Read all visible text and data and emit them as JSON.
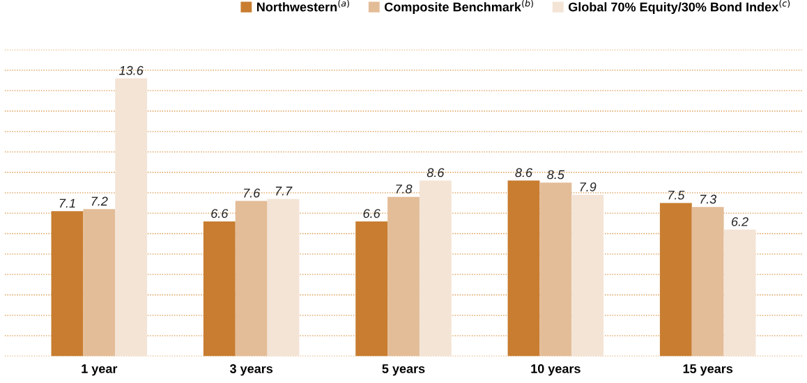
{
  "chart_data": {
    "type": "bar",
    "categories": [
      "1 year",
      "3 years",
      "5 years",
      "10 years",
      "15 years"
    ],
    "series": [
      {
        "name": "Northwestern$^{(a)}$",
        "color": "#c87d30",
        "values": [
          7.1,
          6.6,
          6.6,
          8.6,
          7.5
        ]
      },
      {
        "name": "Composite Benchmark$^{(b)}$",
        "color": "#e3bd98",
        "values": [
          7.2,
          7.6,
          7.8,
          8.5,
          7.3
        ]
      },
      {
        "name": "Global 70% Equity/30% Bond Index$^{(c)}$",
        "color": "#f4e4d6",
        "values": [
          13.6,
          7.7,
          8.6,
          7.9,
          6.2
        ]
      }
    ],
    "ylim": [
      0,
      15
    ],
    "yticks": [
      {
        "value": 0,
        "label": null
      },
      {
        "value": 1,
        "label": null
      },
      {
        "value": 2,
        "label": null
      },
      {
        "value": 3,
        "label": null
      },
      {
        "value": 4,
        "label": null
      },
      {
        "value": 5,
        "label": null
      },
      {
        "value": 6,
        "label": null
      },
      {
        "value": 7,
        "label": null
      },
      {
        "value": 8,
        "label": null
      },
      {
        "value": 9,
        "label": null
      },
      {
        "value": 10,
        "label": null
      },
      {
        "value": 11,
        "label": null
      },
      {
        "value": 12,
        "label": null
      },
      {
        "value": 13,
        "label": null
      },
      {
        "value": 14,
        "label": null
      },
      {
        "value": 15,
        "label": null
      }
    ],
    "tick_labels": "x",
    "grid": "y",
    "legend": "top right",
    "data_labels": true
  }
}
